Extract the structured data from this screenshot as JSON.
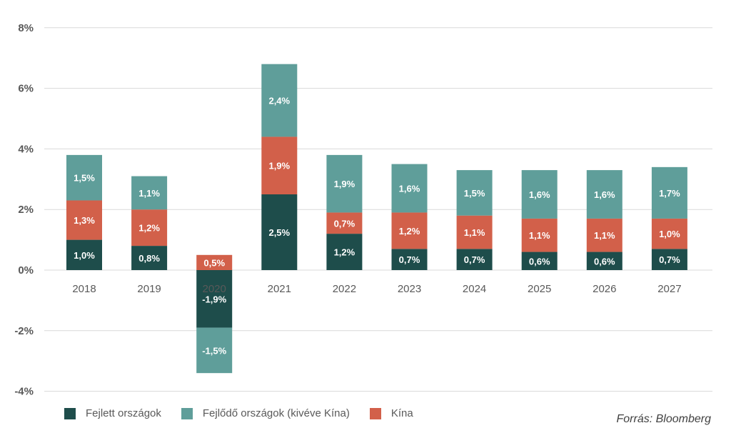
{
  "chart_data": {
    "type": "stacked-bar",
    "categories": [
      "2018",
      "2019",
      "2020",
      "2021",
      "2022",
      "2023",
      "2024",
      "2025",
      "2026",
      "2027"
    ],
    "series": [
      {
        "name": "Fejlett országok",
        "color": "#1e4d4b",
        "values": [
          1.0,
          0.8,
          -1.9,
          2.5,
          1.2,
          0.7,
          0.7,
          0.6,
          0.6,
          0.7
        ],
        "labels": [
          "1,0%",
          "0,8%",
          "-1,9%",
          "2,5%",
          "1,2%",
          "0,7%",
          "0,7%",
          "0,6%",
          "0,6%",
          "0,7%"
        ]
      },
      {
        "name": "Fejlődő országok (kivéve Kína)",
        "color": "#5f9e9a",
        "values": [
          1.5,
          1.1,
          -1.5,
          2.4,
          1.9,
          1.6,
          1.5,
          1.6,
          1.6,
          1.7
        ],
        "labels": [
          "1,5%",
          "1,1%",
          "-1,5%",
          "2,4%",
          "1,9%",
          "1,6%",
          "1,5%",
          "1,6%",
          "1,6%",
          "1,7%"
        ]
      },
      {
        "name": "Kína",
        "color": "#d2604a",
        "values": [
          1.3,
          1.2,
          0.5,
          1.9,
          0.7,
          1.2,
          1.1,
          1.1,
          1.1,
          1.0
        ],
        "labels": [
          "1,3%",
          "1,2%",
          "0,5%",
          "1,9%",
          "0,7%",
          "1,2%",
          "1,1%",
          "1,1%",
          "1,1%",
          "1,0%"
        ]
      }
    ],
    "stack_order_positive": [
      0,
      2,
      1
    ],
    "ylim": [
      -4,
      8
    ],
    "yticks": [
      -4,
      -2,
      0,
      2,
      4,
      6,
      8
    ],
    "ytick_labels": [
      "-4%",
      "-2%",
      "0%",
      "2%",
      "4%",
      "6%",
      "8%"
    ],
    "grid": true,
    "legend_position": "bottom-left",
    "title": "",
    "xlabel": "",
    "ylabel": ""
  },
  "legend": {
    "items": [
      {
        "label": "Fejlett országok",
        "color": "#1e4d4b"
      },
      {
        "label": "Fejlődő országok (kivéve Kína)",
        "color": "#5f9e9a"
      },
      {
        "label": "Kína",
        "color": "#d2604a"
      }
    ]
  },
  "source": "Forrás: Bloomberg"
}
